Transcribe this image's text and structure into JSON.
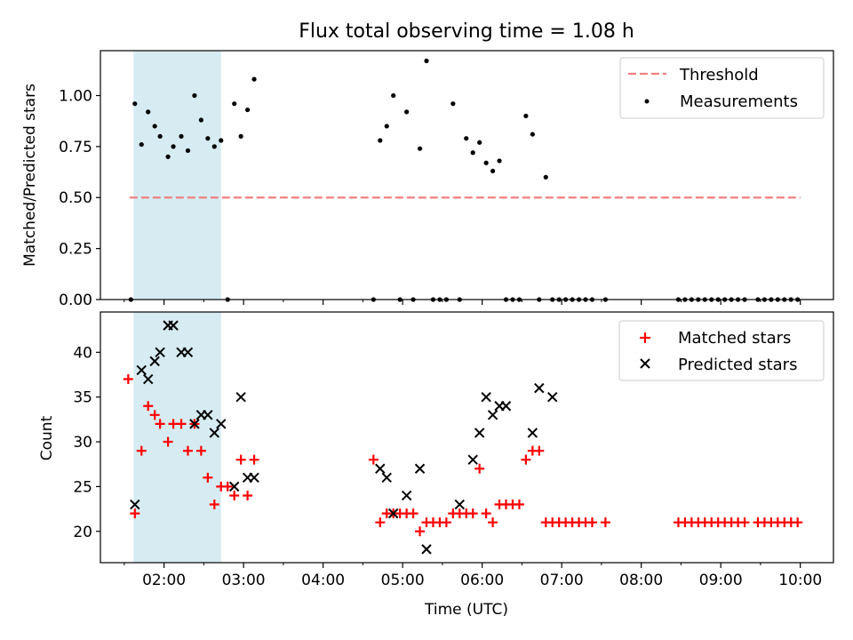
{
  "title": "Flux total observing time = 1.08 h",
  "colors": {
    "threshold": "#f08080",
    "measurements": "#000000",
    "matched": "#ff0000",
    "predicted": "#000000",
    "shade": "#add8e6"
  },
  "chart_data": [
    {
      "type": "scatter",
      "panel": "top",
      "xlabel": "",
      "ylabel": "Matched/Predicted stars",
      "ylim": [
        0,
        1.22
      ],
      "yticks": [
        "0.00",
        "0.25",
        "0.50",
        "0.75",
        "1.00"
      ],
      "xlim": [
        "01:12",
        "10:25"
      ],
      "xticks": [
        "02:00",
        "03:00",
        "04:00",
        "05:00",
        "06:00",
        "07:00",
        "08:00",
        "09:00",
        "10:00"
      ],
      "shaded_region": [
        "01:37",
        "02:43"
      ],
      "legend_position": "upper right",
      "legend": [
        "Threshold",
        "Measurements"
      ],
      "threshold": {
        "name": "Threshold",
        "x": [
          "01:34",
          "10:00"
        ],
        "y": 0.5,
        "style": "dashed"
      },
      "series": [
        {
          "name": "Measurements",
          "marker": "dot",
          "x": [
            "01:35",
            "01:38",
            "01:43",
            "01:48",
            "01:53",
            "01:57",
            "02:03",
            "02:07",
            "02:13",
            "02:18",
            "02:23",
            "02:28",
            "02:33",
            "02:38",
            "02:43",
            "02:48",
            "02:53",
            "02:58",
            "03:03",
            "03:08",
            "04:38",
            "04:43",
            "04:48",
            "04:53",
            "04:58",
            "05:03",
            "05:08",
            "05:13",
            "05:18",
            "05:23",
            "05:28",
            "05:33",
            "05:38",
            "05:43",
            "05:48",
            "05:53",
            "05:58",
            "06:03",
            "06:08",
            "06:13",
            "06:18",
            "06:23",
            "06:28",
            "06:33",
            "06:38",
            "06:43",
            "06:48",
            "06:53",
            "06:58",
            "07:03",
            "07:08",
            "07:13",
            "07:18",
            "07:23",
            "07:33",
            "08:28",
            "08:33",
            "08:38",
            "08:43",
            "08:48",
            "08:53",
            "08:58",
            "09:03",
            "09:08",
            "09:13",
            "09:18",
            "09:28",
            "09:33",
            "09:38",
            "09:43",
            "09:48",
            "09:53",
            "09:58"
          ],
          "values": [
            0.0,
            0.96,
            0.76,
            0.92,
            0.85,
            0.8,
            0.7,
            0.75,
            0.8,
            0.73,
            1.0,
            0.88,
            0.79,
            0.75,
            0.78,
            0.0,
            0.96,
            0.8,
            0.93,
            1.08,
            0.0,
            0.78,
            0.85,
            1.0,
            0.0,
            0.92,
            0.0,
            0.74,
            1.17,
            0.0,
            0.0,
            0.0,
            0.96,
            0.0,
            0.79,
            0.72,
            0.77,
            0.67,
            0.63,
            0.68,
            0.0,
            0.0,
            0.0,
            0.9,
            0.81,
            0.0,
            0.6,
            0.0,
            0.0,
            0.0,
            0.0,
            0.0,
            0.0,
            0.0,
            0.0,
            0.0,
            0.0,
            0.0,
            0.0,
            0.0,
            0.0,
            0.0,
            0.0,
            0.0,
            0.0,
            0.0,
            0.0,
            0.0,
            0.0,
            0.0,
            0.0,
            0.0,
            0.0
          ]
        }
      ]
    },
    {
      "type": "scatter",
      "panel": "bottom",
      "xlabel": "Time (UTC)",
      "ylabel": "Count",
      "ylim": [
        16.5,
        44.5
      ],
      "yticks": [
        "20",
        "25",
        "30",
        "35",
        "40"
      ],
      "xlim": [
        "01:12",
        "10:25"
      ],
      "xticks": [
        "02:00",
        "03:00",
        "04:00",
        "05:00",
        "06:00",
        "07:00",
        "08:00",
        "09:00",
        "10:00"
      ],
      "shaded_region": [
        "01:37",
        "02:43"
      ],
      "legend_position": "upper right",
      "legend": [
        "Matched stars",
        "Predicted stars"
      ],
      "series": [
        {
          "name": "Matched stars",
          "marker": "plus",
          "x": [
            "01:33",
            "01:38",
            "01:43",
            "01:48",
            "01:53",
            "01:57",
            "02:03",
            "02:07",
            "02:13",
            "02:18",
            "02:23",
            "02:28",
            "02:33",
            "02:38",
            "02:43",
            "02:48",
            "02:53",
            "02:58",
            "03:03",
            "03:08",
            "04:38",
            "04:43",
            "04:48",
            "04:53",
            "04:58",
            "05:03",
            "05:08",
            "05:13",
            "05:18",
            "05:23",
            "05:28",
            "05:33",
            "05:38",
            "05:43",
            "05:48",
            "05:53",
            "05:58",
            "06:03",
            "06:08",
            "06:13",
            "06:18",
            "06:23",
            "06:28",
            "06:33",
            "06:38",
            "06:43",
            "06:48",
            "06:53",
            "06:58",
            "07:03",
            "07:08",
            "07:13",
            "07:18",
            "07:23",
            "07:33",
            "08:28",
            "08:33",
            "08:38",
            "08:43",
            "08:48",
            "08:53",
            "08:58",
            "09:03",
            "09:08",
            "09:13",
            "09:18",
            "09:28",
            "09:33",
            "09:38",
            "09:43",
            "09:48",
            "09:53",
            "09:58"
          ],
          "values": [
            37,
            22,
            29,
            34,
            33,
            32,
            30,
            32,
            32,
            29,
            32,
            29,
            26,
            23,
            25,
            25,
            24,
            28,
            24,
            28,
            28,
            21,
            22,
            22,
            22,
            22,
            22,
            20,
            21,
            21,
            21,
            21,
            22,
            22,
            22,
            22,
            27,
            22,
            21,
            23,
            23,
            23,
            23,
            28,
            29,
            29,
            21,
            21,
            21,
            21,
            21,
            21,
            21,
            21,
            21,
            21,
            21,
            21,
            21,
            21,
            21,
            21,
            21,
            21,
            21,
            21,
            21,
            21,
            21,
            21,
            21,
            21,
            21
          ]
        },
        {
          "name": "Predicted stars",
          "marker": "x",
          "x": [
            "01:38",
            "01:43",
            "01:48",
            "01:53",
            "01:57",
            "02:03",
            "02:07",
            "02:13",
            "02:18",
            "02:23",
            "02:28",
            "02:33",
            "02:38",
            "02:43",
            "02:53",
            "02:58",
            "03:03",
            "03:08",
            "04:43",
            "04:48",
            "04:53",
            "05:03",
            "05:13",
            "05:18",
            "05:43",
            "05:53",
            "05:58",
            "06:03",
            "06:08",
            "06:13",
            "06:18",
            "06:38",
            "06:43",
            "06:53"
          ],
          "values": [
            23,
            38,
            37,
            39,
            40,
            43,
            43,
            40,
            40,
            32,
            33,
            33,
            31,
            32,
            25,
            35,
            26,
            26,
            27,
            26,
            22,
            24,
            27,
            18,
            23,
            28,
            31,
            35,
            33,
            34,
            34,
            31,
            36,
            35
          ]
        }
      ]
    }
  ]
}
